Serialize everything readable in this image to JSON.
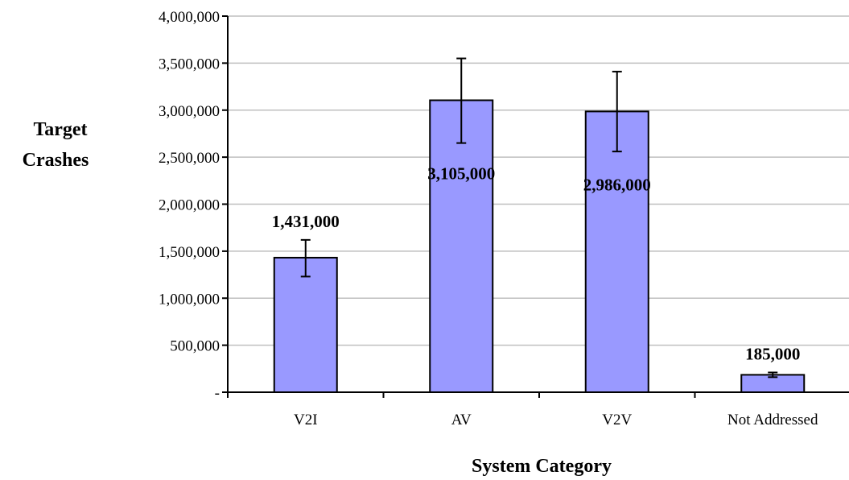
{
  "chart_data": {
    "type": "bar",
    "title": "",
    "xlabel": "System Category",
    "ylabel_lines": [
      "Target",
      "Crashes"
    ],
    "categories": [
      "V2I",
      "AV",
      "V2V",
      "Not Addressed"
    ],
    "values": [
      1431000,
      3105000,
      2986000,
      185000
    ],
    "value_labels": [
      "1,431,000",
      "3,105,000",
      "2,986,000",
      "185,000"
    ],
    "error_low": [
      1230000,
      2650000,
      2560000,
      160000
    ],
    "error_high": [
      1620000,
      3550000,
      3410000,
      210000
    ],
    "ylim": [
      0,
      4000000
    ],
    "yticks": [
      0,
      500000,
      1000000,
      1500000,
      2000000,
      2500000,
      3000000,
      3500000,
      4000000
    ],
    "ytick_labels": [
      "-",
      "500,000",
      "1,000,000",
      "1,500,000",
      "2,000,000",
      "2,500,000",
      "3,000,000",
      "3,500,000",
      "4,000,000"
    ],
    "grid": true,
    "legend": "none",
    "colors": {
      "bar_fill": "#9999ff",
      "bar_stroke": "#000000",
      "grid": "#bfbfbf"
    }
  }
}
